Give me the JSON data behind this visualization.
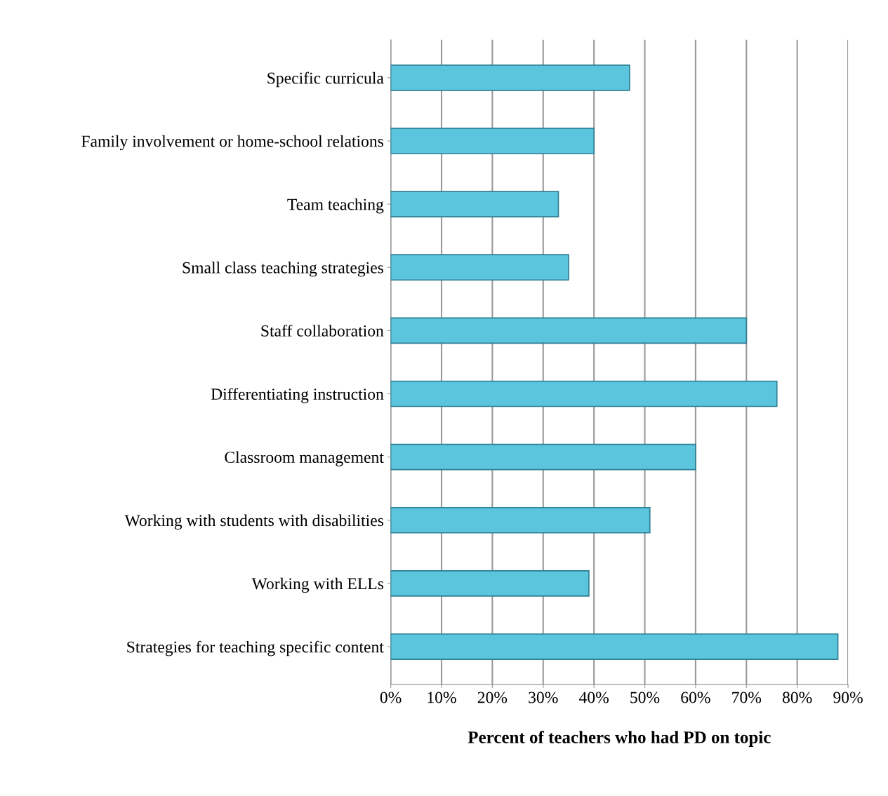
{
  "chart_data": {
    "type": "bar",
    "orientation": "horizontal",
    "xlabel": "Percent of teachers who had PD on topic",
    "categories": [
      "Specific curricula",
      "Family involvement or home-school relations",
      "Team teaching",
      "Small class teaching strategies",
      "Staff collaboration",
      "Differentiating instruction",
      "Classroom management",
      "Working with students with disabilities",
      "Working with ELLs",
      "Strategies for teaching specific content"
    ],
    "values": [
      47,
      40,
      33,
      35,
      70,
      76,
      60,
      51,
      39,
      88
    ],
    "color": "#5bc5de",
    "xlim": [
      0,
      90
    ],
    "xticks": [
      {
        "value": 0,
        "label": "0%"
      },
      {
        "value": 10,
        "label": "10%"
      },
      {
        "value": 20,
        "label": "20%"
      },
      {
        "value": 30,
        "label": "30%"
      },
      {
        "value": 40,
        "label": "40%"
      },
      {
        "value": 50,
        "label": "50%"
      },
      {
        "value": 60,
        "label": "60%"
      },
      {
        "value": 70,
        "label": "70%"
      },
      {
        "value": 80,
        "label": "80%"
      },
      {
        "value": 90,
        "label": "90%"
      }
    ],
    "grid": "x",
    "legend": false
  }
}
